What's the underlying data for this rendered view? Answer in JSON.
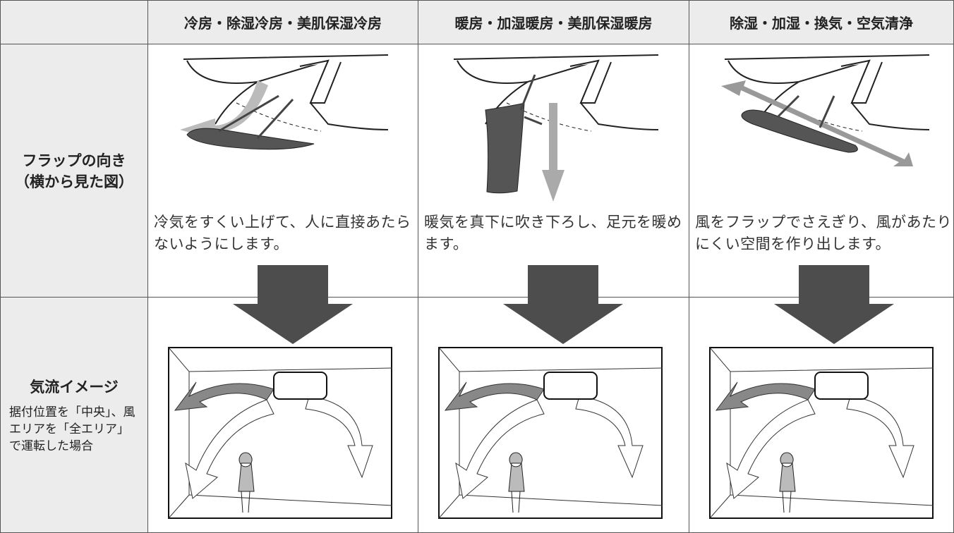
{
  "table": {
    "columns": [
      "冷房・除湿冷房・美肌保湿冷房",
      "暖房・加湿暖房・美肌保湿暖房",
      "除湿・加湿・換気・空気清浄"
    ],
    "rows": [
      {
        "label": [
          "フラップの向き",
          "（横から見た図）"
        ],
        "cells": [
          "冷気をすくい上げて、人に直接あたらないようにします。",
          "暖気を真下に吹き下ろし、足元を暖めます。",
          "風をフラップでさえぎり、風があたりにくい空間を作り出します。"
        ]
      },
      {
        "label": [
          "気流イメージ"
        ],
        "note": "据付位置を「中央」、風エリアを「全エリア」で運転した場合"
      }
    ]
  }
}
